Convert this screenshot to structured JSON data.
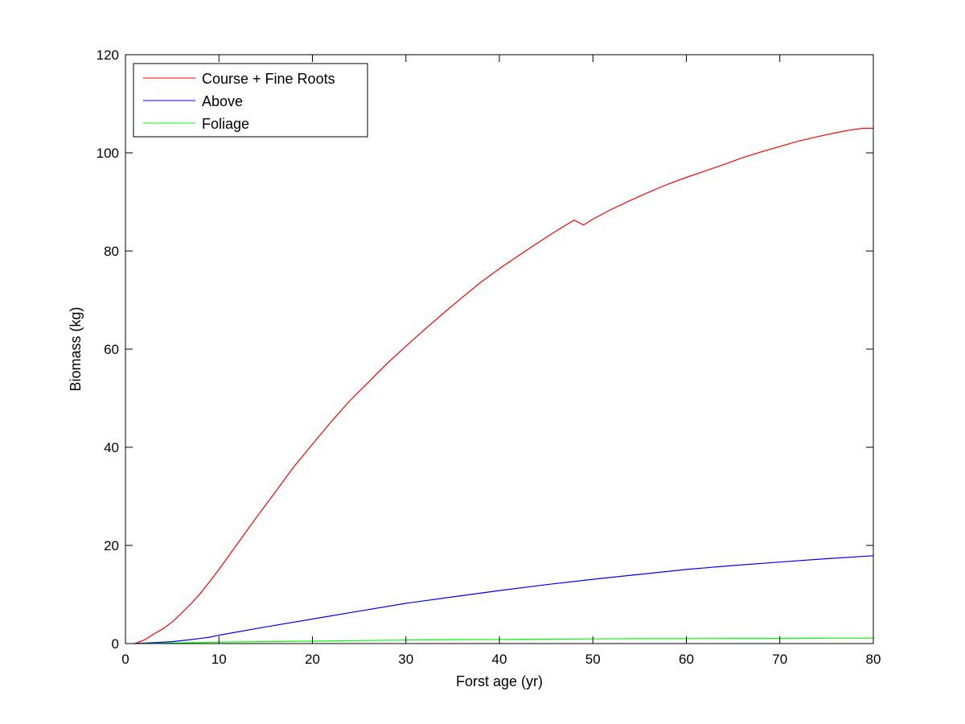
{
  "chart_data": {
    "type": "line",
    "xlabel": "Forst age (yr)",
    "ylabel": "Biomass (kg)",
    "xlim": [
      0,
      80
    ],
    "ylim": [
      0,
      120
    ],
    "xticks": [
      0,
      10,
      20,
      30,
      40,
      50,
      60,
      70,
      80
    ],
    "yticks": [
      0,
      20,
      40,
      60,
      80,
      100,
      120
    ],
    "xtick_labels": [
      "0",
      "10",
      "20",
      "30",
      "40",
      "50",
      "60",
      "70",
      "80"
    ],
    "ytick_labels": [
      "0",
      "20",
      "40",
      "60",
      "80",
      "100",
      "120"
    ],
    "grid": false,
    "legend_position": "top-left",
    "series": [
      {
        "name": "Course + Fine Roots",
        "color": "#ff0000",
        "x": [
          1,
          2,
          3,
          4,
          5,
          6,
          7,
          8,
          9,
          10,
          12,
          14,
          16,
          18,
          20,
          22,
          24,
          26,
          28,
          30,
          32,
          34,
          36,
          38,
          40,
          42,
          44,
          46,
          48,
          49,
          50,
          52,
          54,
          56,
          58,
          60,
          62,
          64,
          66,
          68,
          70,
          72,
          74,
          76,
          78,
          79,
          80
        ],
        "y": [
          0,
          0.7,
          1.9,
          3.0,
          4.4,
          6.2,
          8.1,
          10.2,
          12.6,
          15.1,
          20.4,
          25.7,
          30.8,
          36.0,
          40.6,
          45.2,
          49.5,
          53.3,
          57.1,
          60.6,
          64.0,
          67.3,
          70.5,
          73.6,
          76.4,
          79.0,
          81.5,
          84.0,
          86.3,
          85.3,
          86.5,
          88.5,
          90.3,
          92.0,
          93.6,
          95.0,
          96.3,
          97.6,
          99.0,
          100.2,
          101.3,
          102.4,
          103.3,
          104.1,
          104.8,
          105.0,
          105.0
        ]
      },
      {
        "name": "Above",
        "color": "#0000ff",
        "x": [
          1,
          3,
          5,
          7,
          9,
          10,
          15,
          20,
          25,
          30,
          35,
          40,
          45,
          50,
          55,
          60,
          65,
          70,
          75,
          80
        ],
        "y": [
          0,
          0.2,
          0.4,
          0.8,
          1.3,
          1.7,
          3.4,
          5.0,
          6.6,
          8.2,
          9.5,
          10.8,
          12.0,
          13.1,
          14.1,
          15.1,
          15.9,
          16.6,
          17.3,
          17.9
        ]
      },
      {
        "name": "Foliage",
        "color": "#00ff00",
        "x": [
          1,
          5,
          10,
          15,
          20,
          25,
          30,
          35,
          40,
          45,
          50,
          55,
          60,
          65,
          70,
          75,
          80
        ],
        "y": [
          0,
          0.1,
          0.3,
          0.4,
          0.5,
          0.6,
          0.7,
          0.8,
          0.85,
          0.9,
          0.95,
          1.0,
          1.0,
          1.05,
          1.05,
          1.1,
          1.1
        ]
      }
    ]
  }
}
